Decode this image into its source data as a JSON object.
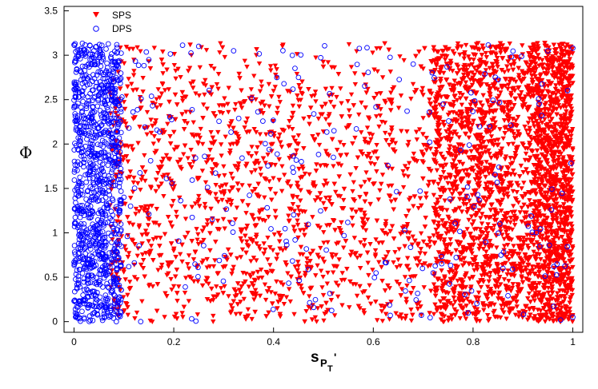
{
  "chart_data": {
    "type": "scatter",
    "xlabel": "s",
    "xlabel_sub": "P",
    "xlabel_subsub": "T",
    "xlabel_prime": "'",
    "ylabel": "Φ",
    "xlim": [
      -0.02,
      1.02
    ],
    "ylim": [
      -0.12,
      3.55
    ],
    "x_ticks": [
      0,
      0.2,
      0.4,
      0.6,
      0.8,
      1
    ],
    "x_tick_labels": [
      "0",
      "0.2",
      "0.4",
      "0.6",
      "0.8",
      "1"
    ],
    "y_ticks": [
      0,
      0.5,
      1,
      1.5,
      2,
      2.5,
      3,
      3.5
    ],
    "y_tick_labels": [
      "0",
      "0.5",
      "1",
      "1.5",
      "2",
      "2.5",
      "3",
      "3.5"
    ],
    "grid": false,
    "legend_position": "top-left",
    "series": [
      {
        "name": "SPS",
        "marker": "down-triangle",
        "color": "#ff0000",
        "x_range": [
          0.07,
          1.0
        ],
        "y_range": [
          0.0,
          3.14
        ],
        "approx_point_count": 5500,
        "density_note": "density increases sharply above x≈0.7 and is highest near x=1",
        "sample_points": [
          [
            0.12,
            2.95
          ],
          [
            0.15,
            1.3
          ],
          [
            0.2,
            0.4
          ],
          [
            0.25,
            2.1
          ],
          [
            0.3,
            1.75
          ],
          [
            0.35,
            0.85
          ],
          [
            0.4,
            2.6
          ],
          [
            0.45,
            1.2
          ],
          [
            0.5,
            0.3
          ],
          [
            0.55,
            2.2
          ],
          [
            0.6,
            1.55
          ],
          [
            0.65,
            0.7
          ],
          [
            0.7,
            2.85
          ],
          [
            0.75,
            1.9
          ],
          [
            0.8,
            0.95
          ],
          [
            0.85,
            2.45
          ],
          [
            0.9,
            1.4
          ],
          [
            0.95,
            0.55
          ],
          [
            0.98,
            3.05
          ],
          [
            1.0,
            1.8
          ]
        ]
      },
      {
        "name": "DPS",
        "marker": "open-circle",
        "color": "#0000ff",
        "x_range": [
          0.0,
          1.0
        ],
        "y_range": [
          0.0,
          3.14
        ],
        "approx_point_count": 1300,
        "density_note": "dense vertical band for x≈0–0.1, sparse scatter elsewhere",
        "sample_points": [
          [
            0.01,
            0.2
          ],
          [
            0.02,
            1.1
          ],
          [
            0.03,
            2.3
          ],
          [
            0.04,
            3.05
          ],
          [
            0.05,
            0.75
          ],
          [
            0.06,
            1.85
          ],
          [
            0.08,
            2.7
          ],
          [
            0.1,
            1.4
          ],
          [
            0.15,
            2.95
          ],
          [
            0.25,
            3.1
          ],
          [
            0.32,
            3.05
          ],
          [
            0.45,
            2.75
          ],
          [
            0.52,
            1.85
          ],
          [
            0.68,
            2.9
          ],
          [
            0.74,
            2.45
          ],
          [
            0.86,
            0.6
          ],
          [
            0.95,
            3.05
          ],
          [
            1.0,
            3.08
          ],
          [
            1.0,
            0.05
          ]
        ]
      }
    ]
  }
}
